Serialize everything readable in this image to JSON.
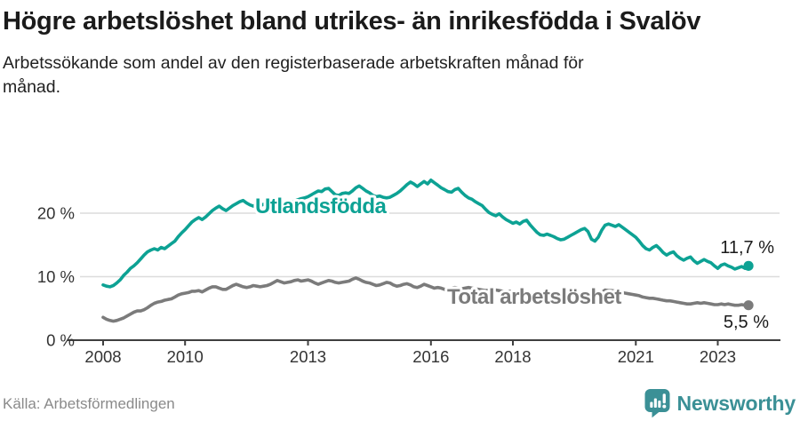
{
  "header": {
    "title": "Högre arbetslöshet bland utrikes- än inrikesfödda i Svalöv",
    "subtitle": "Arbetssökande som andel av den registerbaserade arbetskraften månad för månad."
  },
  "footer": {
    "source": "Källa: Arbetsförmedlingen",
    "brand": "Newsworthy",
    "brand_color": "#3b9096",
    "brand_icon": "newsworthy-speech-bubble-bar-chart"
  },
  "chart_data": {
    "type": "line",
    "x_start_year": 2008,
    "x_step_months": 1,
    "x_end_label_year": 2023,
    "x_ticks": [
      2008,
      2010,
      2013,
      2016,
      2018,
      2021,
      2023
    ],
    "y_ticks": [
      {
        "value": 0,
        "label": "0 %"
      },
      {
        "value": 10,
        "label": "10 %"
      },
      {
        "value": 20,
        "label": "20 %"
      }
    ],
    "ylim": [
      0,
      27
    ],
    "grid": "horizontal",
    "axis_color": "#3f3f3f",
    "grid_color": "#dcdcdc",
    "tick_label_color": "#333333",
    "value_label_color": "#1a1a1a",
    "legend_position": "inline-labels-on-lines",
    "series": [
      {
        "name": "Utlandsfödda",
        "color": "#0da294",
        "end_label": "11,7 %",
        "end_value": 11.7,
        "values": [
          8.7,
          8.5,
          8.4,
          8.6,
          9.0,
          9.5,
          10.2,
          10.7,
          11.3,
          11.7,
          12.2,
          12.8,
          13.4,
          13.9,
          14.2,
          14.4,
          14.2,
          14.6,
          14.4,
          14.8,
          15.2,
          15.6,
          16.3,
          16.9,
          17.4,
          18.0,
          18.6,
          19.0,
          19.3,
          19.0,
          19.4,
          19.9,
          20.4,
          20.8,
          21.1,
          20.7,
          20.4,
          20.8,
          21.2,
          21.5,
          21.8,
          22.0,
          21.6,
          21.3,
          21.1,
          21.5,
          21.2,
          21.4,
          21.5,
          21.9,
          22.1,
          21.8,
          21.5,
          21.7,
          21.9,
          21.7,
          21.9,
          22.1,
          22.3,
          22.4,
          22.6,
          22.9,
          23.2,
          23.5,
          23.4,
          23.8,
          23.9,
          23.4,
          22.9,
          22.8,
          23.1,
          23.2,
          23.1,
          23.5,
          24.0,
          24.3,
          23.9,
          23.5,
          23.2,
          22.8,
          22.6,
          22.7,
          22.5,
          22.4,
          22.5,
          22.8,
          23.1,
          23.5,
          24.0,
          24.5,
          24.9,
          24.6,
          24.2,
          24.6,
          25.0,
          24.6,
          25.2,
          24.8,
          24.4,
          24.0,
          23.7,
          23.4,
          23.3,
          23.7,
          23.9,
          23.3,
          22.8,
          22.4,
          22.2,
          21.8,
          21.5,
          21.2,
          20.6,
          20.1,
          19.8,
          19.6,
          19.9,
          19.4,
          19.0,
          18.7,
          18.4,
          18.6,
          18.3,
          18.7,
          18.9,
          18.2,
          17.6,
          17.0,
          16.6,
          16.5,
          16.7,
          16.5,
          16.3,
          16.0,
          15.8,
          15.9,
          16.2,
          16.5,
          16.8,
          17.1,
          17.4,
          17.6,
          17.1,
          15.9,
          15.6,
          16.2,
          17.3,
          18.1,
          18.3,
          18.1,
          17.9,
          18.2,
          17.8,
          17.4,
          17.0,
          16.6,
          16.2,
          15.6,
          14.9,
          14.4,
          14.2,
          14.6,
          14.9,
          14.4,
          13.8,
          13.4,
          13.7,
          13.9,
          13.3,
          12.9,
          12.6,
          12.9,
          13.1,
          12.5,
          12.1,
          12.4,
          12.7,
          12.4,
          12.2,
          11.7,
          11.3,
          11.8,
          12.0,
          11.7,
          11.5,
          11.2,
          11.4,
          11.6,
          11.3,
          11.7
        ]
      },
      {
        "name": "Total arbetslöshet",
        "color": "#7b7b7b",
        "end_label": "5,5 %",
        "end_value": 5.5,
        "values": [
          3.6,
          3.3,
          3.1,
          3.0,
          3.1,
          3.3,
          3.5,
          3.8,
          4.1,
          4.4,
          4.6,
          4.6,
          4.8,
          5.1,
          5.5,
          5.8,
          6.0,
          6.1,
          6.3,
          6.4,
          6.5,
          6.8,
          7.1,
          7.3,
          7.4,
          7.5,
          7.7,
          7.7,
          7.8,
          7.6,
          7.9,
          8.2,
          8.4,
          8.4,
          8.2,
          8.0,
          8.0,
          8.3,
          8.6,
          8.8,
          8.6,
          8.4,
          8.3,
          8.4,
          8.6,
          8.5,
          8.4,
          8.5,
          8.6,
          8.8,
          9.1,
          9.4,
          9.2,
          9.0,
          9.1,
          9.2,
          9.4,
          9.5,
          9.3,
          9.4,
          9.5,
          9.3,
          9.0,
          8.8,
          9.0,
          9.2,
          9.4,
          9.3,
          9.1,
          9.0,
          9.1,
          9.2,
          9.3,
          9.6,
          9.8,
          9.6,
          9.3,
          9.1,
          9.0,
          8.8,
          8.6,
          8.7,
          8.9,
          9.1,
          9.0,
          8.7,
          8.5,
          8.6,
          8.8,
          8.9,
          8.7,
          8.4,
          8.3,
          8.5,
          8.8,
          8.6,
          8.4,
          8.2,
          8.3,
          8.2,
          8.0,
          8.1,
          8.2,
          8.3,
          8.2,
          8.1,
          8.2,
          8.3,
          8.2,
          8.1,
          8.0,
          7.9,
          7.8,
          7.9,
          8.0,
          7.9,
          7.8,
          7.7,
          7.6,
          7.7,
          7.6,
          7.5,
          7.4,
          7.3,
          7.3,
          7.2,
          7.3,
          7.2,
          7.1,
          7.0,
          7.1,
          7.0,
          7.1,
          7.0,
          7.0,
          6.9,
          6.9,
          7.0,
          7.1,
          7.0,
          6.9,
          6.8,
          6.9,
          6.8,
          6.9,
          7.0,
          7.5,
          7.9,
          7.8,
          7.8,
          7.7,
          7.6,
          7.5,
          7.4,
          7.3,
          7.2,
          7.1,
          7.0,
          6.8,
          6.7,
          6.6,
          6.6,
          6.5,
          6.4,
          6.3,
          6.2,
          6.2,
          6.1,
          6.0,
          5.9,
          5.8,
          5.7,
          5.7,
          5.8,
          5.9,
          5.8,
          5.9,
          5.8,
          5.7,
          5.6,
          5.6,
          5.7,
          5.6,
          5.7,
          5.6,
          5.5,
          5.5,
          5.6,
          5.5,
          5.5
        ]
      }
    ]
  }
}
